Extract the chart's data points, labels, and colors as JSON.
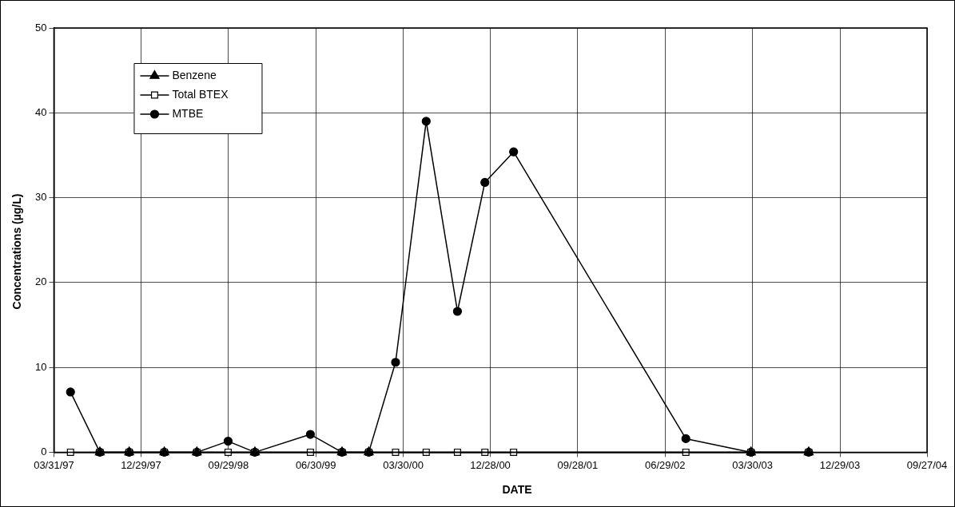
{
  "chart_data": {
    "type": "line",
    "xlabel": "DATE",
    "ylabel": "Concentrations (µg/L)",
    "x": [
      "1997-05-22",
      "1997-08-22",
      "1997-11-22",
      "1998-03-12",
      "1998-06-22",
      "1998-09-28",
      "1998-12-21",
      "1999-06-13",
      "1999-09-20",
      "1999-12-13",
      "2000-03-06",
      "2000-06-10",
      "2000-09-16",
      "2000-12-11",
      "2001-03-11",
      "2002-09-02",
      "2003-03-25",
      "2003-09-22"
    ],
    "series": [
      {
        "name": "MTBE",
        "color": "#000000",
        "marker": "circle",
        "values": [
          7.1,
          0,
          0,
          0,
          0,
          1.3,
          0,
          2.1,
          0,
          0,
          10.6,
          39,
          16.6,
          31.8,
          35.4,
          1.6,
          0,
          0
        ]
      },
      {
        "name": "Total BTEX",
        "color": "#000000",
        "marker": "square",
        "values": [
          0,
          0,
          0,
          0,
          0,
          0,
          0,
          0,
          0,
          0,
          0,
          0,
          0,
          0,
          0,
          0,
          0,
          0
        ]
      },
      {
        "name": "Benzene",
        "color": "#000000",
        "marker": "triangle",
        "values": [
          null,
          0,
          0,
          0,
          0,
          null,
          0,
          null,
          0,
          0,
          null,
          null,
          null,
          null,
          null,
          null,
          0,
          0
        ]
      }
    ],
    "xlim": [
      "1997-03-31",
      "2004-09-27"
    ],
    "xticks": [
      {
        "value": "1997-03-31",
        "label": "03/31/97"
      },
      {
        "value": "1997-12-29",
        "label": "12/29/97"
      },
      {
        "value": "1998-09-29",
        "label": "09/29/98"
      },
      {
        "value": "1999-06-30",
        "label": "06/30/99"
      },
      {
        "value": "2000-03-30",
        "label": "03/30/00"
      },
      {
        "value": "2000-12-28",
        "label": "12/28/00"
      },
      {
        "value": "2001-09-28",
        "label": "09/28/01"
      },
      {
        "value": "2002-06-29",
        "label": "06/29/02"
      },
      {
        "value": "2003-03-30",
        "label": "03/30/03"
      },
      {
        "value": "2003-12-29",
        "label": "12/29/03"
      },
      {
        "value": "2004-09-27",
        "label": "09/27/04"
      }
    ],
    "ylim": [
      0,
      50
    ],
    "yticks": [
      0,
      10,
      20,
      30,
      40,
      50
    ],
    "grid": true,
    "legend": "top left",
    "line_style": "solid"
  }
}
